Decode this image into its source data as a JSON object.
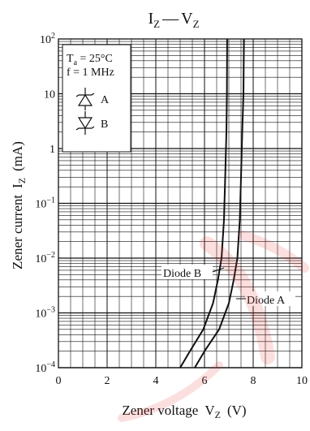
{
  "chart_data": {
    "type": "line",
    "title": "IZ — VZ",
    "title_parts": {
      "main_i": "I",
      "sub_z1": "Z",
      "dash": "—",
      "main_v": "V",
      "sub_z2": "Z"
    },
    "xlabel": "Zener voltage  VZ  (V)",
    "xlabel_parts": {
      "text": "Zener voltage",
      "sym": "V",
      "sub": "Z",
      "unit": "(V)"
    },
    "ylabel": "Zener current  IZ  (mA)",
    "ylabel_parts": {
      "text": "Zener current",
      "sym": "I",
      "sub": "Z",
      "unit": "(mA)"
    },
    "x_ticks": [
      0,
      2,
      4,
      6,
      8,
      10
    ],
    "x_tick_labels": [
      "0",
      "2",
      "4",
      "6",
      "8",
      "10"
    ],
    "xlim": [
      0,
      10
    ],
    "ylim": [
      0.0001,
      100
    ],
    "y_scale": "log",
    "y_ticks": [
      {
        "value": 100,
        "base": "10",
        "exp": "2"
      },
      {
        "value": 10,
        "base": "10",
        "exp": ""
      },
      {
        "value": 1,
        "base": "1",
        "exp": ""
      },
      {
        "value": 0.1,
        "base": "10",
        "exp": "−1"
      },
      {
        "value": 0.01,
        "base": "10",
        "exp": "−2"
      },
      {
        "value": 0.001,
        "base": "10",
        "exp": "−3"
      },
      {
        "value": 0.0001,
        "base": "10",
        "exp": "−4"
      }
    ],
    "grid": true,
    "conditions": {
      "line1": {
        "sym": "T",
        "sub": "a",
        "rest": " = 25°C"
      },
      "line2": "f = 1 MHz"
    },
    "legend": {
      "placement": "top-left",
      "entries": [
        {
          "symbol": "zener-diode-up-icon",
          "label": "A"
        },
        {
          "symbol": "zener-diode-down-icon",
          "label": "B"
        }
      ]
    },
    "series": [
      {
        "name": "Diode A",
        "points": [
          [
            5.6,
            0.0001
          ],
          [
            6.0,
            0.0002
          ],
          [
            6.6,
            0.0005
          ],
          [
            7.0,
            0.0015
          ],
          [
            7.2,
            0.004
          ],
          [
            7.35,
            0.01
          ],
          [
            7.45,
            0.05
          ],
          [
            7.5,
            0.3
          ],
          [
            7.55,
            2
          ],
          [
            7.6,
            10
          ],
          [
            7.62,
            100
          ]
        ]
      },
      {
        "name": "Diode B",
        "points": [
          [
            5.0,
            0.0001
          ],
          [
            5.4,
            0.0002
          ],
          [
            5.95,
            0.0005
          ],
          [
            6.35,
            0.0015
          ],
          [
            6.55,
            0.004
          ],
          [
            6.7,
            0.01
          ],
          [
            6.8,
            0.05
          ],
          [
            6.85,
            0.3
          ],
          [
            6.9,
            2
          ],
          [
            6.92,
            10
          ],
          [
            6.93,
            100
          ]
        ]
      }
    ],
    "annotations": [
      "Diode B",
      "Diode A"
    ]
  }
}
